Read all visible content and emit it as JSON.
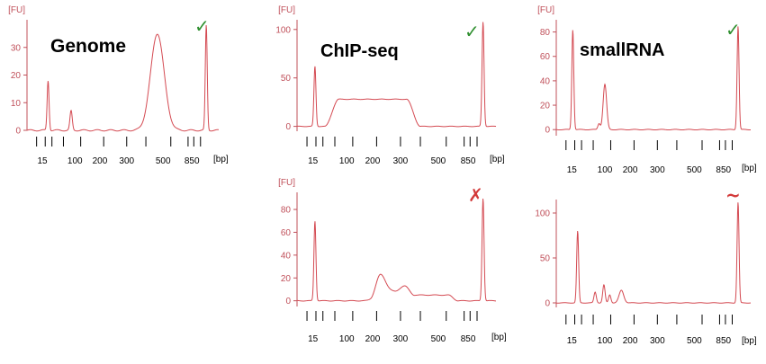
{
  "colors": {
    "axis": "#c0505a",
    "trace": "#d44a52",
    "pass": "#2f8f2f",
    "fail": "#d33a3a",
    "text": "#000000"
  },
  "chart_data": [
    {
      "type": "line",
      "id": "genome",
      "title": "Genome",
      "ylabel": "[FU]",
      "xlabel": "[bp]",
      "ylim": [
        0,
        40
      ],
      "yticks": [
        "0",
        "10",
        "20",
        "30"
      ],
      "xticks": [
        "15",
        "100",
        "200",
        "300",
        "500",
        "850"
      ],
      "status": "pass",
      "status_glyph": "✓",
      "series": [
        {
          "name": "trace",
          "peaks": [
            {
              "x": 0.11,
              "h": 18,
              "w": 0.005
            },
            {
              "x": 0.23,
              "h": 7,
              "w": 0.006
            },
            {
              "x": 0.68,
              "h": 35,
              "w": 0.035
            },
            {
              "x": 0.935,
              "h": 38,
              "w": 0.005
            }
          ]
        }
      ]
    },
    {
      "type": "line",
      "id": "chipseq-top",
      "title": "ChIP-seq",
      "ylabel": "[FU]",
      "xlabel": "[bp]",
      "ylim": [
        -5,
        110
      ],
      "yticks": [
        "0",
        "50",
        "100"
      ],
      "xticks": [
        "15",
        "100",
        "200",
        "300",
        "500",
        "850"
      ],
      "status": "pass",
      "status_glyph": "✓",
      "series": [
        {
          "name": "trace",
          "peaks": [
            {
              "x": 0.09,
              "h": 62,
              "w": 0.005
            },
            {
              "x": 0.935,
              "h": 108,
              "w": 0.005
            }
          ],
          "plateaus": [
            {
              "x0": 0.21,
              "x1": 0.55,
              "h": 28,
              "ramp": 0.07
            }
          ]
        }
      ]
    },
    {
      "type": "line",
      "id": "chipseq-bottom",
      "title": "",
      "ylabel": "[FU]",
      "xlabel": "[bp]",
      "ylim": [
        -5,
        95
      ],
      "yticks": [
        "0",
        "20",
        "40",
        "60",
        "80"
      ],
      "xticks": [
        "15",
        "100",
        "200",
        "300",
        "500",
        "850"
      ],
      "status": "fail",
      "status_glyph": "✗",
      "series": [
        {
          "name": "trace",
          "peaks": [
            {
              "x": 0.09,
              "h": 70,
              "w": 0.005
            },
            {
              "x": 0.42,
              "h": 15,
              "w": 0.025
            },
            {
              "x": 0.935,
              "h": 90,
              "w": 0.005
            }
          ],
          "plateaus": [
            {
              "x0": 0.42,
              "x1": 0.54,
              "h": 8,
              "ramp": 0.05
            },
            {
              "x0": 0.54,
              "x1": 0.76,
              "h": 5,
              "ramp": 0.05
            }
          ]
        }
      ]
    },
    {
      "type": "line",
      "id": "smallrna-top",
      "title": "smallRNA",
      "ylabel": "[FU]",
      "xlabel": "[bp]",
      "ylim": [
        -5,
        90
      ],
      "yticks": [
        "0",
        "20",
        "40",
        "60",
        "80"
      ],
      "xticks": [
        "15",
        "100",
        "200",
        "300",
        "500",
        "850"
      ],
      "status": "pass",
      "status_glyph": "✓",
      "series": [
        {
          "name": "trace",
          "peaks": [
            {
              "x": 0.085,
              "h": 82,
              "w": 0.005
            },
            {
              "x": 0.22,
              "h": 5,
              "w": 0.006
            },
            {
              "x": 0.25,
              "h": 37,
              "w": 0.009
            },
            {
              "x": 0.935,
              "h": 85,
              "w": 0.005
            }
          ]
        }
      ]
    },
    {
      "type": "line",
      "id": "smallrna-bottom",
      "title": "",
      "ylabel": "",
      "xlabel": "[bp]",
      "ylim": [
        -5,
        115
      ],
      "yticks": [
        "0",
        "50",
        "100"
      ],
      "xticks": [
        "15",
        "100",
        "200",
        "300",
        "500",
        "850"
      ],
      "status": "warning",
      "status_glyph": "~",
      "series": [
        {
          "name": "trace",
          "peaks": [
            {
              "x": 0.11,
              "h": 80,
              "w": 0.005
            },
            {
              "x": 0.2,
              "h": 12,
              "w": 0.006
            },
            {
              "x": 0.245,
              "h": 20,
              "w": 0.006
            },
            {
              "x": 0.275,
              "h": 9,
              "w": 0.006
            },
            {
              "x": 0.335,
              "h": 14,
              "w": 0.012
            },
            {
              "x": 0.935,
              "h": 112,
              "w": 0.005
            }
          ]
        }
      ]
    }
  ]
}
